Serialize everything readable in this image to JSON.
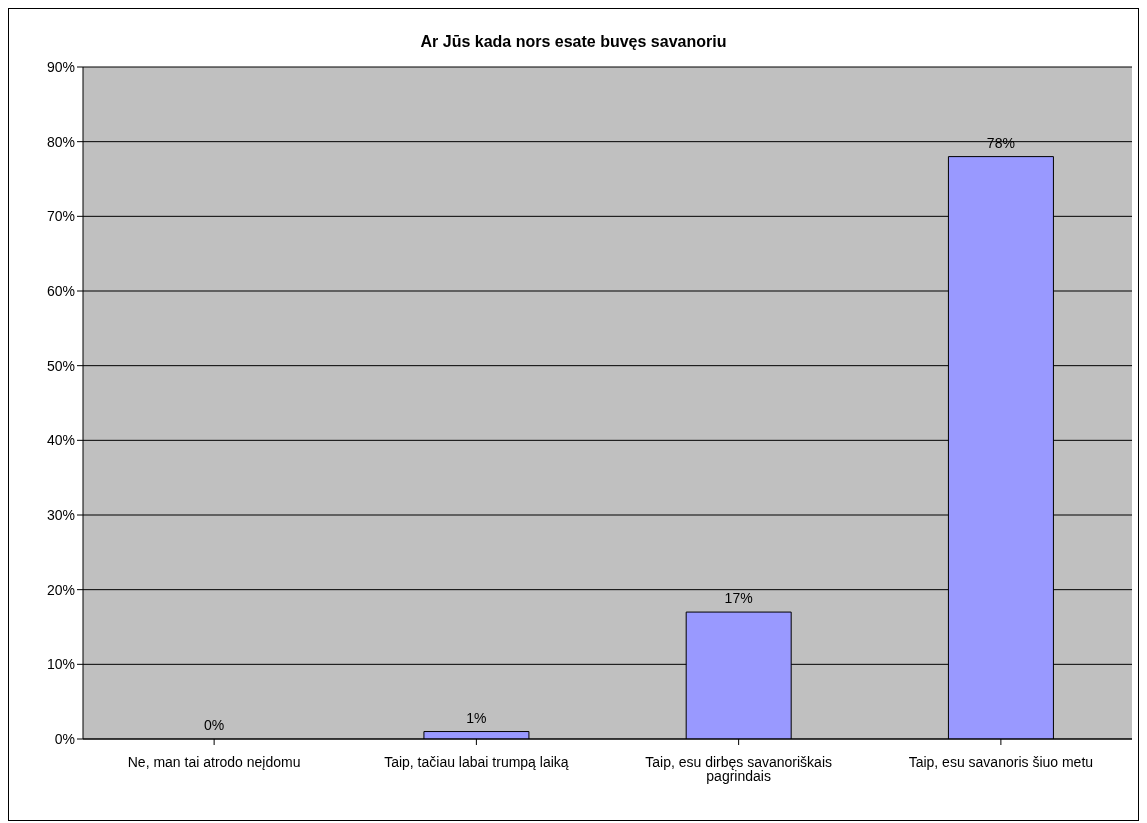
{
  "chart_data": {
    "type": "bar",
    "title": "Ar Jūs kada nors esate buvęs savanoriu",
    "categories": [
      "Ne, man tai atrodo neįdomu",
      "Taip, tačiau labai trumpą laiką",
      "Taip, esu dirbęs savanoriškais pagrindais",
      "Taip, esu savanoris šiuo metu"
    ],
    "values": [
      0,
      1,
      17,
      78
    ],
    "value_labels": [
      "0%",
      "1%",
      "17%",
      "78%"
    ],
    "color": "#9999ff",
    "ylim": [
      0,
      90
    ],
    "yticks": [
      {
        "value": 0,
        "label": "0%"
      },
      {
        "value": 10,
        "label": "10%"
      },
      {
        "value": 20,
        "label": "20%"
      },
      {
        "value": 30,
        "label": "30%"
      },
      {
        "value": 40,
        "label": "40%"
      },
      {
        "value": 50,
        "label": "50%"
      },
      {
        "value": 60,
        "label": "60%"
      },
      {
        "value": 70,
        "label": "70%"
      },
      {
        "value": 80,
        "label": "80%"
      },
      {
        "value": 90,
        "label": "90%"
      }
    ],
    "grid": "y"
  }
}
